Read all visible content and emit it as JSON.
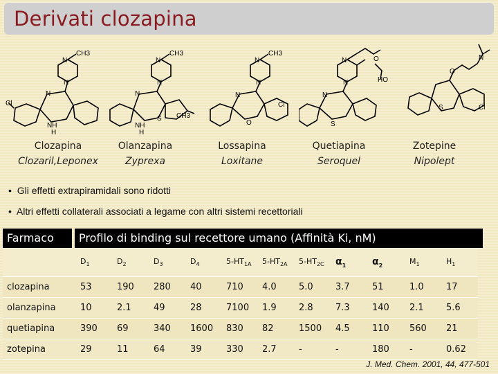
{
  "title": "Derivati clozapina",
  "drugs": [
    {
      "name": "Clozapina",
      "brand": "Clozaril,Leponex"
    },
    {
      "name": "Olanzapina",
      "brand": "Zyprexa"
    },
    {
      "name": "Lossapina",
      "brand": "Loxitane"
    },
    {
      "name": "Quetiapina",
      "brand": "Seroquel"
    },
    {
      "name": "Zotepine",
      "brand": "Nipolept"
    }
  ],
  "structure_labels": {
    "ch3": "CH3",
    "n": "N",
    "nh": "NH",
    "h": "H",
    "cl": "Cl",
    "s": "S",
    "o": "O",
    "ho": "HO"
  },
  "bullets": [
    "Gli effetti extrapiramidali sono ridotti",
    "Altri effetti collaterali associati a legame con altri sistemi recettoriali"
  ],
  "table": {
    "header_left": "Farmaco",
    "header_right": "Profilo di binding sul recettore umano (Affinità Ki, nM)",
    "columns": [
      "D1",
      "D2",
      "D3",
      "D4",
      "5-HT1A",
      "5-HT2A",
      "5-HT2C",
      "α1",
      "α2",
      "M1",
      "H1"
    ],
    "rows": [
      {
        "name": "clozapina",
        "values": [
          "53",
          "190",
          "280",
          "40",
          "710",
          "4.0",
          "5.0",
          "3.7",
          "51",
          "1.0",
          "17"
        ]
      },
      {
        "name": "olanzapina",
        "values": [
          "10",
          "2.1",
          "49",
          "28",
          "7100",
          "1.9",
          "2.8",
          "7.3",
          "140",
          "2.1",
          "5.6"
        ]
      },
      {
        "name": "quetiapina",
        "values": [
          "390",
          "69",
          "340",
          "1600",
          "830",
          "82",
          "1500",
          "4.5",
          "110",
          "560",
          "21"
        ]
      },
      {
        "name": "zotepina",
        "values": [
          "29",
          "11",
          "64",
          "39",
          "330",
          "2.7",
          "-",
          "-",
          "180",
          "-",
          "0.62"
        ]
      }
    ]
  },
  "reference": "J. Med. Chem. 2001, 44, 477-501"
}
